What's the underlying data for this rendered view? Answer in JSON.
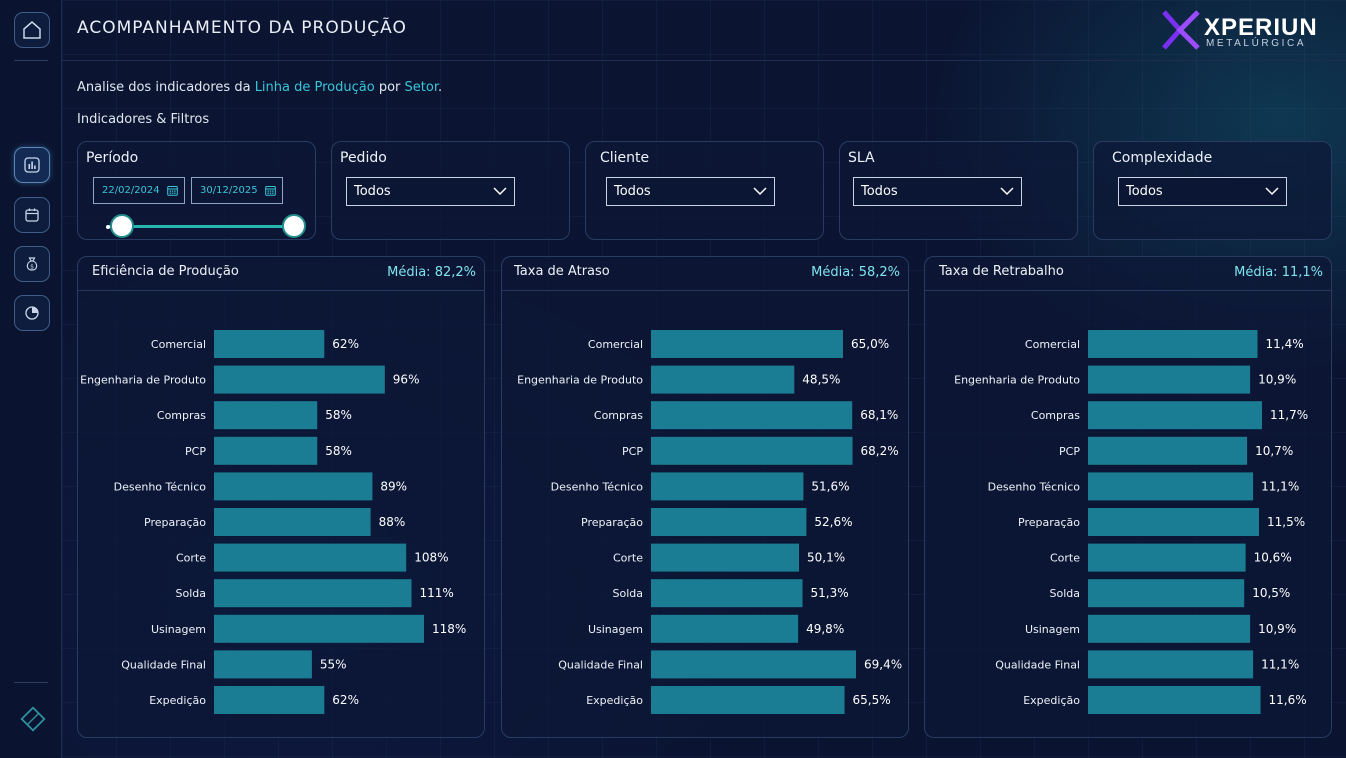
{
  "header": {
    "title": "ACOMPANHAMENTO DA PRODUÇÃO",
    "logo_main": "XPERIUN",
    "logo_sub": "METALÚRGICA"
  },
  "intro": {
    "prefix": "Analise dos indicadores da ",
    "highlight1": "Linha de Produção",
    "middle": " por ",
    "highlight2": "Setor",
    "suffix": "."
  },
  "section_label": "Indicadores & Filtros",
  "sidebar": {
    "items": [
      {
        "icon": "home-icon"
      },
      {
        "icon": "bar-chart-icon"
      },
      {
        "icon": "calendar-icon"
      },
      {
        "icon": "money-bag-icon"
      },
      {
        "icon": "gauge-icon"
      }
    ],
    "bottom_icon": "diamond-icon"
  },
  "filters": {
    "periodo": {
      "label": "Período",
      "start": "22/02/2024",
      "end": "30/12/2025"
    },
    "pedido": {
      "label": "Pedido",
      "value": "Todos"
    },
    "cliente": {
      "label": "Cliente",
      "value": "Todos"
    },
    "sla": {
      "label": "SLA",
      "value": "Todos"
    },
    "complexidade": {
      "label": "Complexidade",
      "value": "Todos"
    }
  },
  "colors": {
    "bar": "#1b7d93",
    "accent": "#39c5d8",
    "mean": "#7fe3ee"
  },
  "chart_data": [
    {
      "type": "bar",
      "orientation": "horizontal",
      "title": "Eficiência de Produção",
      "mean_label": "Média: 82,2%",
      "categories": [
        "Comercial",
        "Engenharia de Produto",
        "Compras",
        "PCP",
        "Desenho Técnico",
        "Preparação",
        "Corte",
        "Solda",
        "Usinagem",
        "Qualidade Final",
        "Expedição"
      ],
      "values": [
        62,
        96,
        58,
        58,
        89,
        88,
        108,
        111,
        118,
        55,
        62
      ],
      "labels": [
        "62%",
        "96%",
        "58%",
        "58%",
        "89%",
        "88%",
        "108%",
        "111%",
        "118%",
        "55%",
        "62%"
      ],
      "xlim": [
        0,
        118
      ]
    },
    {
      "type": "bar",
      "orientation": "horizontal",
      "title": "Taxa de Atraso",
      "mean_label": "Média: 58,2%",
      "categories": [
        "Comercial",
        "Engenharia de Produto",
        "Compras",
        "PCP",
        "Desenho Técnico",
        "Preparação",
        "Corte",
        "Solda",
        "Usinagem",
        "Qualidade Final",
        "Expedição"
      ],
      "values": [
        65.0,
        48.5,
        68.1,
        68.2,
        51.6,
        52.6,
        50.1,
        51.3,
        49.8,
        69.4,
        65.5
      ],
      "labels": [
        "65,0%",
        "48,5%",
        "68,1%",
        "68,2%",
        "51,6%",
        "52,6%",
        "50,1%",
        "51,3%",
        "49,8%",
        "69,4%",
        "65,5%"
      ],
      "xlim": [
        0,
        69.4
      ]
    },
    {
      "type": "bar",
      "orientation": "horizontal",
      "title": "Taxa de Retrabalho",
      "mean_label": "Média: 11,1%",
      "categories": [
        "Comercial",
        "Engenharia de Produto",
        "Compras",
        "PCP",
        "Desenho Técnico",
        "Preparação",
        "Corte",
        "Solda",
        "Usinagem",
        "Qualidade Final",
        "Expedição"
      ],
      "values": [
        11.4,
        10.9,
        11.7,
        10.7,
        11.1,
        11.5,
        10.6,
        10.5,
        10.9,
        11.1,
        11.6
      ],
      "labels": [
        "11,4%",
        "10,9%",
        "11,7%",
        "10,7%",
        "11,1%",
        "11,5%",
        "10,6%",
        "10,5%",
        "10,9%",
        "11,1%",
        "11,6%"
      ],
      "xlim": [
        0,
        11.7
      ]
    }
  ]
}
